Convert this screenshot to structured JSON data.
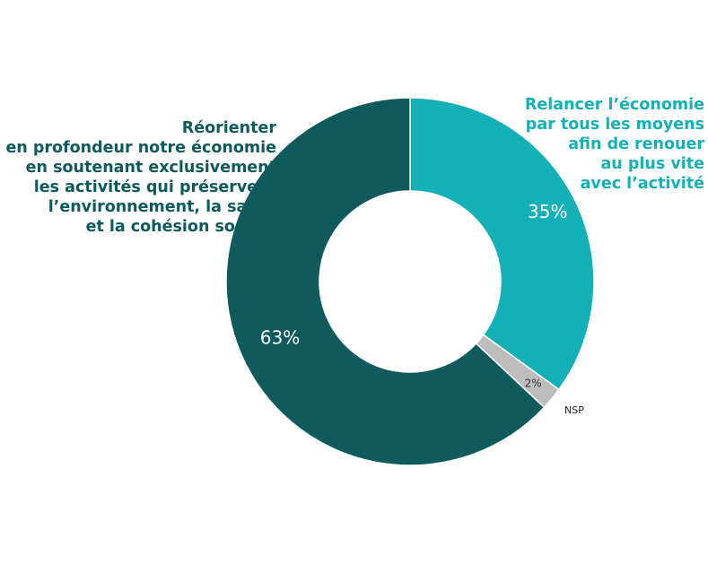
{
  "chart_data": {
    "type": "pie",
    "donut": true,
    "slices": [
      {
        "label_lines": [
          "Relancer l’économie",
          "par tous les moyens",
          "afin de renouer",
          "au plus vite",
          "avec l’activité"
        ],
        "value": 35,
        "value_label": "35%",
        "color": "#14b0b7"
      },
      {
        "label_lines": [
          "NSP"
        ],
        "value": 2,
        "value_label": "2%",
        "color": "#bdbdbd"
      },
      {
        "label_lines": [
          "Réorienter",
          "en profondeur notre économie",
          "en soutenant exclusivement",
          "les activités qui préservent",
          "l’environnement, la santé",
          "et la cohésion sociale"
        ],
        "value": 63,
        "value_label": "63%",
        "color": "#0e5a5c"
      }
    ]
  }
}
